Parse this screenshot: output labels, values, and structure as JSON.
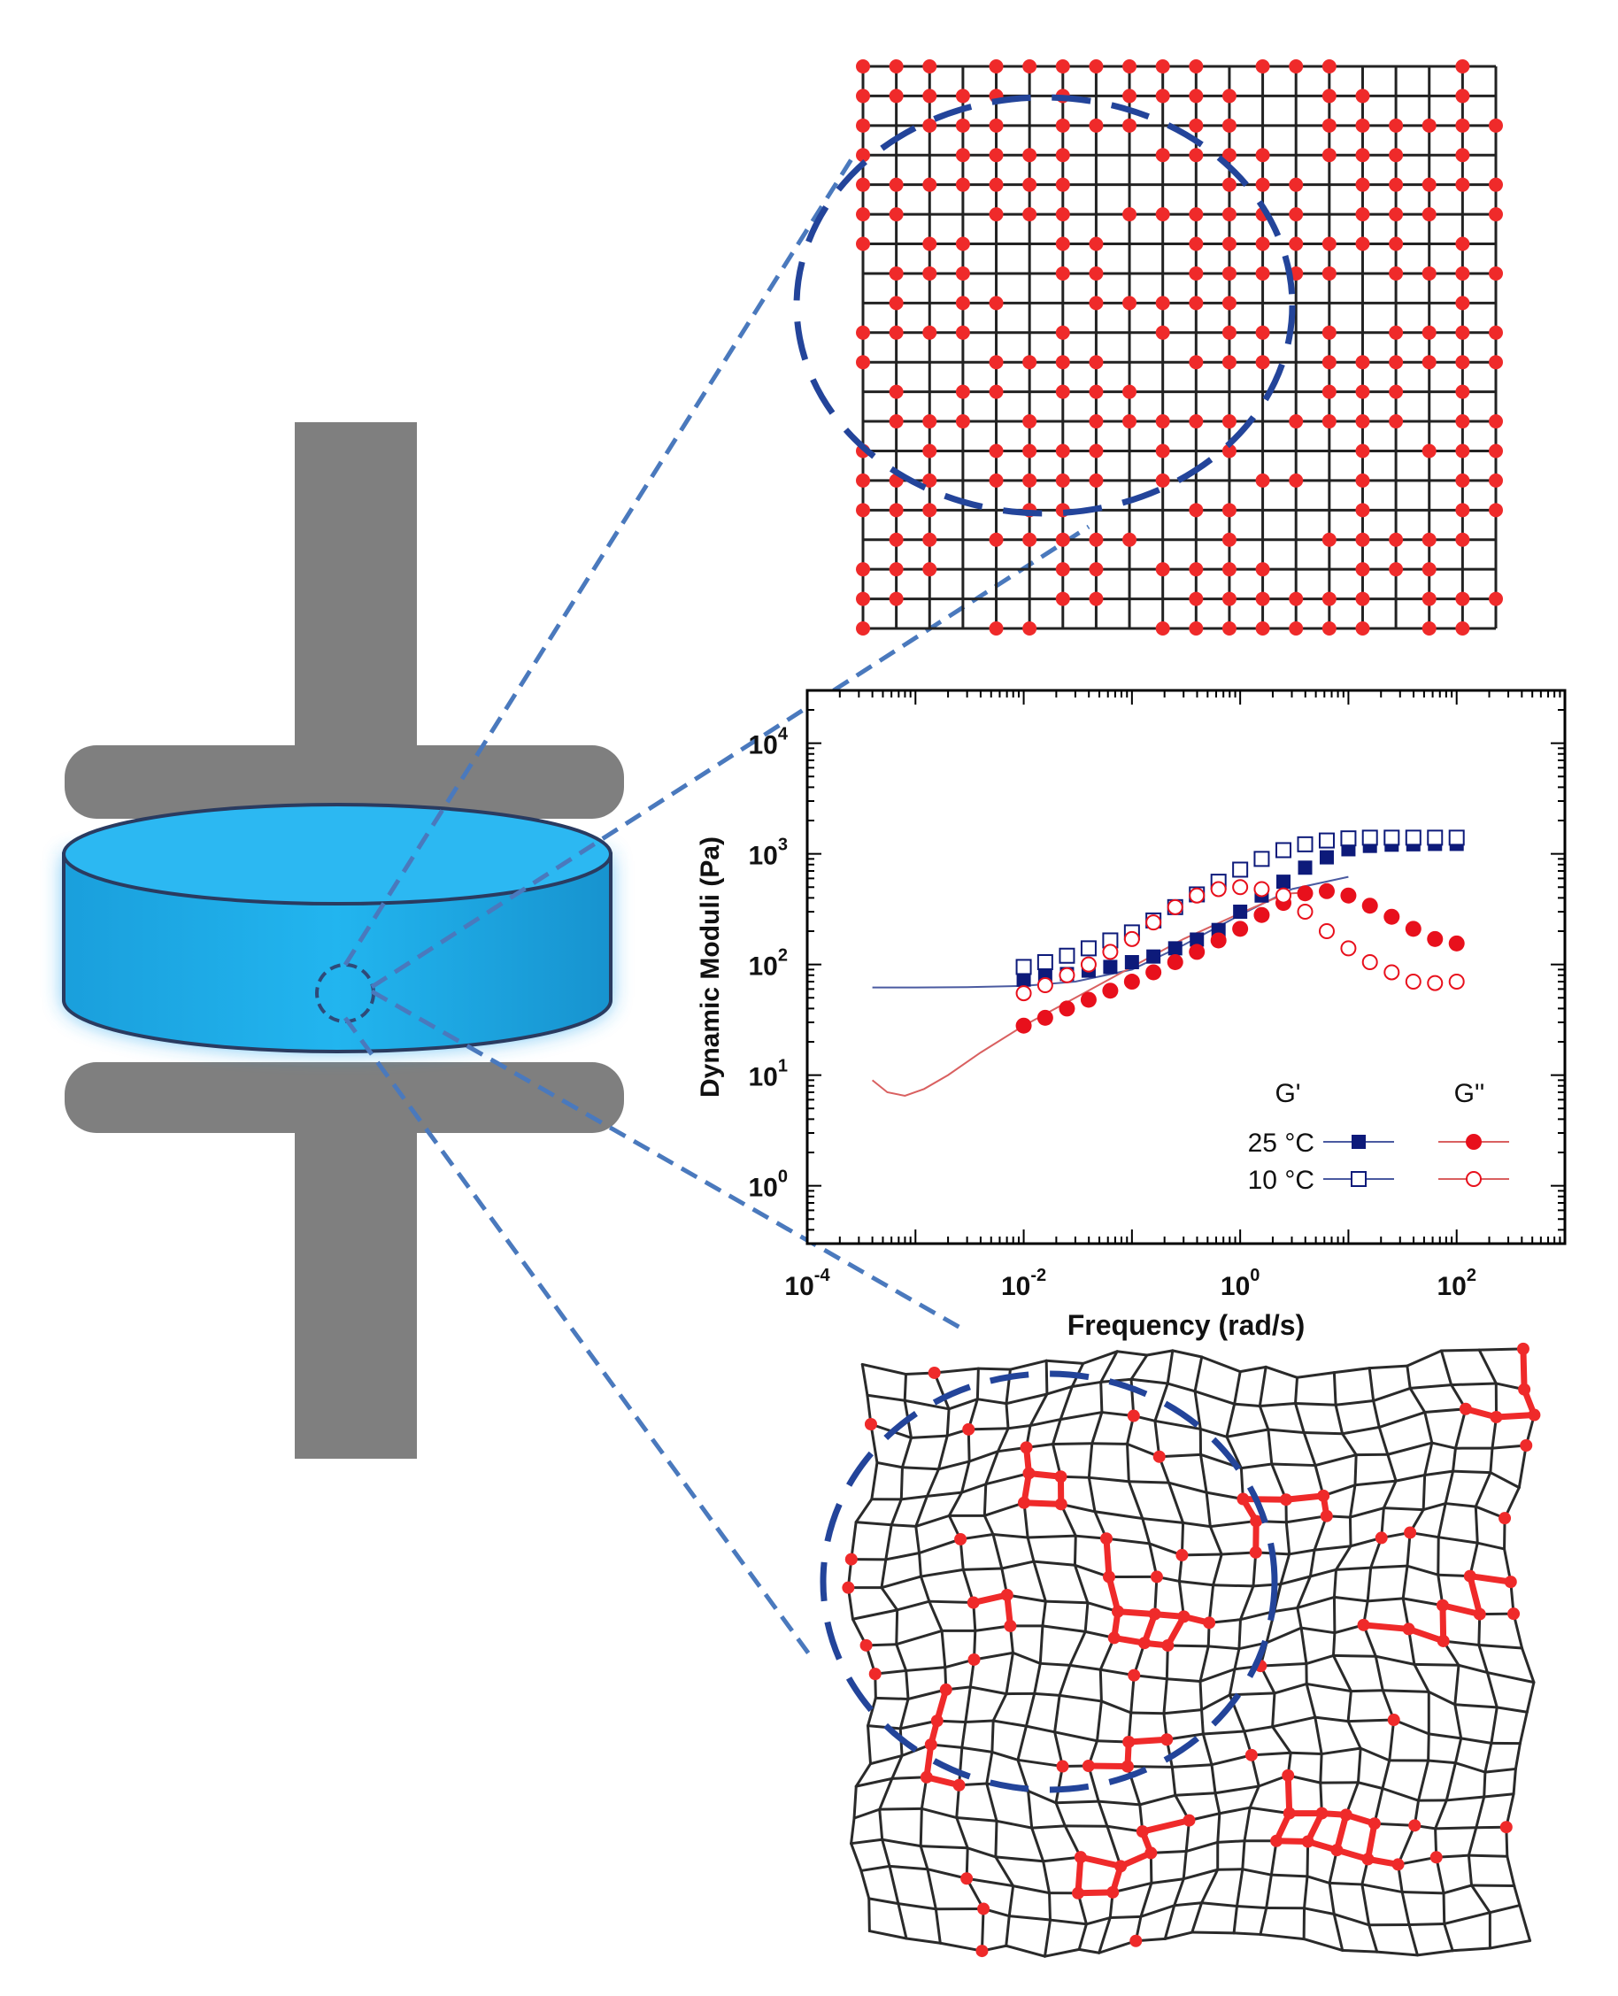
{
  "chart_data": {
    "type": "scatter",
    "xlabel": "Frequency (rad/s)",
    "ylabel": "Dynamic Moduli (Pa)",
    "xscale": "log",
    "yscale": "log",
    "xlim": [
      0.0001,
      1000
    ],
    "ylim": [
      0.3,
      30000
    ],
    "x_ticks": [
      {
        "base": "10",
        "exp": "-4",
        "value": 0.0001
      },
      {
        "base": "10",
        "exp": "-2",
        "value": 0.01
      },
      {
        "base": "10",
        "exp": "0",
        "value": 1
      },
      {
        "base": "10",
        "exp": "2",
        "value": 100
      }
    ],
    "y_ticks": [
      {
        "base": "10",
        "exp": "0",
        "value": 1
      },
      {
        "base": "10",
        "exp": "1",
        "value": 10
      },
      {
        "base": "10",
        "exp": "2",
        "value": 100
      },
      {
        "base": "10",
        "exp": "3",
        "value": 1000
      },
      {
        "base": "10",
        "exp": "4",
        "value": 10000
      }
    ],
    "legend": {
      "placement": "bottom-right",
      "col_headers": [
        "G'",
        "G''"
      ],
      "row_labels": [
        "25 °C",
        "10 °C"
      ]
    },
    "colors": {
      "g_prime": "#0d1a7a",
      "g_double_prime": "#e8101c",
      "fit_g_prime": "#4a5aa0",
      "fit_g_double_prime": "#d96060"
    },
    "series": [
      {
        "id": "gp25",
        "marker": "filled-square",
        "x": [
          0.01,
          0.0158,
          0.0251,
          0.0398,
          0.0631,
          0.1,
          0.158,
          0.251,
          0.398,
          0.631,
          1,
          1.58,
          2.51,
          3.98,
          6.31,
          10,
          15.8,
          25.1,
          39.8,
          63.1,
          100
        ],
        "y": [
          73,
          77,
          82,
          88,
          95,
          105,
          118,
          140,
          168,
          205,
          300,
          420,
          560,
          750,
          930,
          1100,
          1180,
          1210,
          1220,
          1230,
          1230
        ]
      },
      {
        "id": "gp10",
        "marker": "open-square",
        "x": [
          0.01,
          0.0158,
          0.0251,
          0.0398,
          0.0631,
          0.1,
          0.158,
          0.251,
          0.398,
          0.631,
          1,
          1.58,
          2.51,
          3.98,
          6.31,
          10,
          15.8,
          25.1,
          39.8,
          63.1,
          100
        ],
        "y": [
          95,
          105,
          120,
          140,
          165,
          195,
          250,
          330,
          430,
          560,
          720,
          900,
          1080,
          1220,
          1320,
          1380,
          1400,
          1400,
          1400,
          1400,
          1400
        ]
      },
      {
        "id": "gpp25",
        "marker": "filled-circle",
        "x": [
          0.01,
          0.0158,
          0.0251,
          0.0398,
          0.0631,
          0.1,
          0.158,
          0.251,
          0.398,
          0.631,
          1,
          1.58,
          2.51,
          3.98,
          6.31,
          10,
          15.8,
          25.1,
          39.8,
          63.1,
          100
        ],
        "y": [
          28,
          33,
          40,
          48,
          58,
          70,
          85,
          105,
          130,
          165,
          210,
          280,
          360,
          440,
          460,
          420,
          340,
          270,
          210,
          170,
          155
        ]
      },
      {
        "id": "gpp10",
        "marker": "open-circle",
        "x": [
          0.01,
          0.0158,
          0.0251,
          0.0398,
          0.0631,
          0.1,
          0.158,
          0.251,
          0.398,
          0.631,
          1,
          1.58,
          2.51,
          3.98,
          6.31,
          10,
          15.8,
          25.1,
          39.8,
          63.1,
          100
        ],
        "y": [
          55,
          65,
          80,
          100,
          130,
          170,
          240,
          330,
          420,
          480,
          500,
          480,
          420,
          300,
          200,
          140,
          105,
          85,
          70,
          68,
          70
        ]
      }
    ],
    "fit_lines": [
      {
        "id": "fit_gp",
        "x": [
          0.0004,
          0.001,
          0.003,
          0.01,
          0.03,
          0.1,
          0.3,
          1,
          3,
          10
        ],
        "y": [
          62,
          62,
          62.5,
          64,
          70,
          90,
          150,
          280,
          480,
          620
        ]
      },
      {
        "id": "fit_gpp",
        "x": [
          0.0004,
          0.00055,
          0.0008,
          0.0012,
          0.002,
          0.004,
          0.01,
          0.03,
          0.1,
          0.3,
          1,
          2,
          3,
          4.5
        ],
        "y": [
          9,
          7,
          6.5,
          7.5,
          10,
          16,
          28,
          50,
          95,
          170,
          290,
          390,
          440,
          450
        ]
      }
    ]
  }
}
